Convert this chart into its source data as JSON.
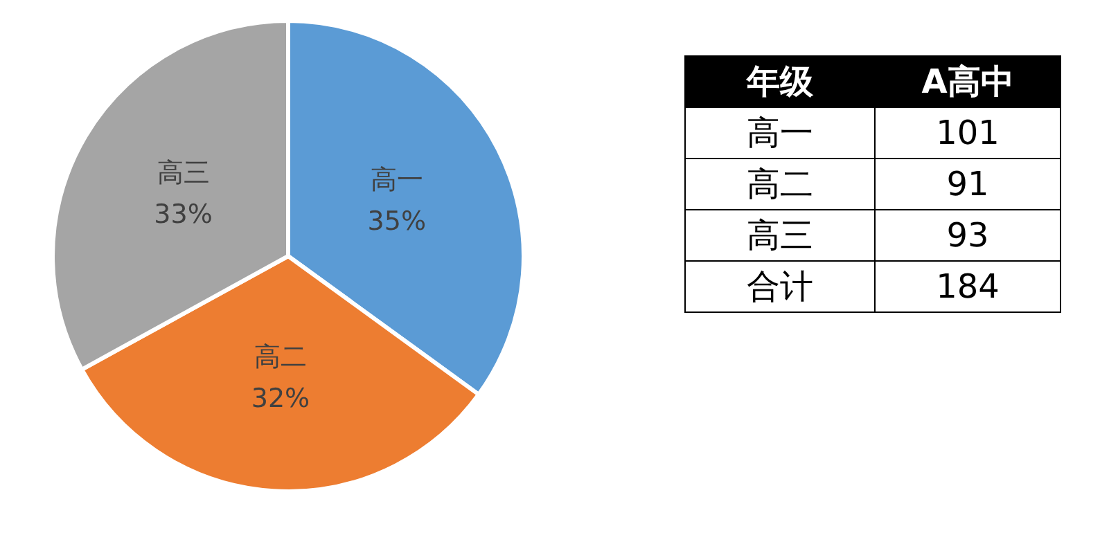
{
  "chart_data": [
    {
      "type": "pie",
      "categories": [
        "高一",
        "高二",
        "高三"
      ],
      "values": [
        35,
        32,
        33
      ],
      "colors": [
        "#5b9bd5",
        "#ed7d31",
        "#a5a5a5"
      ],
      "value_labels": [
        "35%",
        "32%",
        "33%"
      ],
      "legend": false
    },
    {
      "type": "other",
      "xlabel": "年级",
      "ylabel": "A高中",
      "categories": [
        "高一",
        "高二",
        "高三",
        "合计"
      ],
      "values": [
        101,
        91,
        93,
        184
      ],
      "data_labels": true
    }
  ]
}
